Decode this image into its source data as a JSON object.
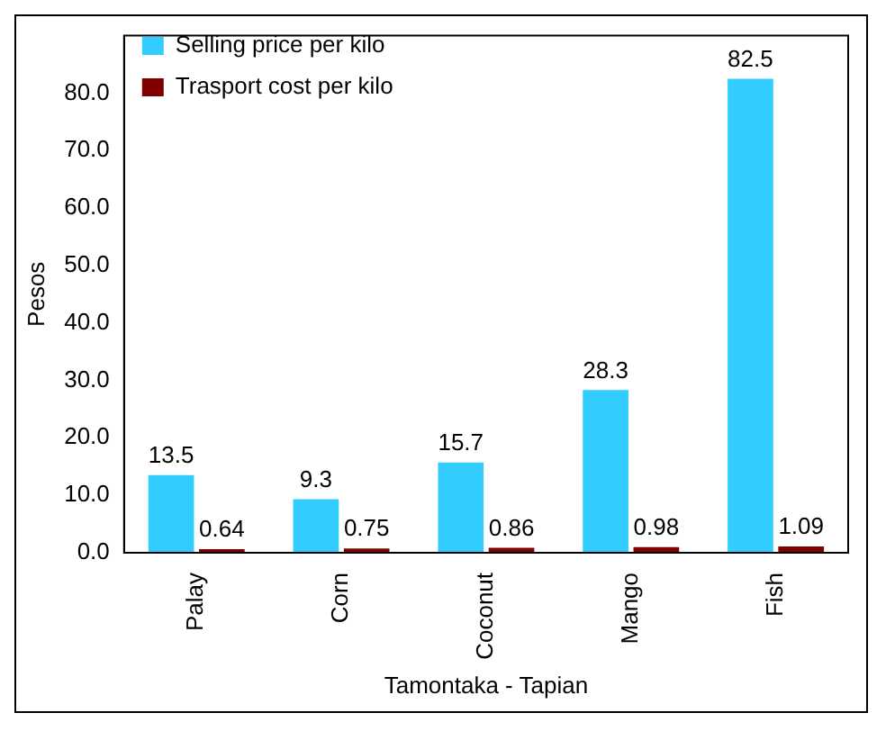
{
  "chart_data": {
    "type": "bar",
    "xlabel": "Tamontaka - Tapian",
    "ylabel": "Pesos",
    "categories": [
      "Palay",
      "Corn",
      "Coconut",
      "Mango",
      "Fish"
    ],
    "series": [
      {
        "name": "Selling price per kilo",
        "color": "#33ccff",
        "values": [
          13.5,
          9.3,
          15.7,
          28.3,
          82.5
        ]
      },
      {
        "name": "Trasport cost per kilo",
        "color": "#800000",
        "values": [
          0.64,
          0.75,
          0.86,
          0.98,
          1.09
        ]
      }
    ],
    "ylim": [
      0,
      90
    ],
    "yticks": [
      {
        "value": 0,
        "label": "0.0"
      },
      {
        "value": 10,
        "label": "10.0"
      },
      {
        "value": 20,
        "label": "20.0"
      },
      {
        "value": 30,
        "label": "30.0"
      },
      {
        "value": 40,
        "label": "40.0"
      },
      {
        "value": 50,
        "label": "50.0"
      },
      {
        "value": 60,
        "label": "60.0"
      },
      {
        "value": 70,
        "label": "70.0"
      },
      {
        "value": 80,
        "label": "80.0"
      }
    ],
    "grid": false,
    "legend": "top left",
    "data_labels": true
  }
}
